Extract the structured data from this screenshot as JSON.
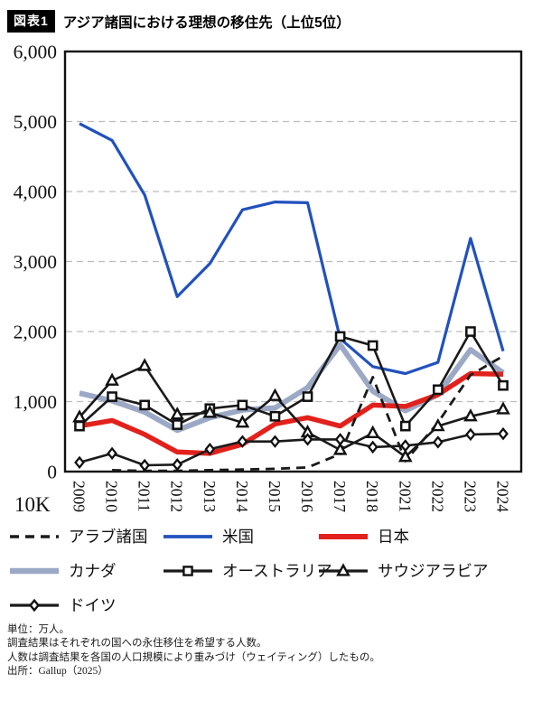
{
  "title": {
    "badge": "図表1",
    "text": "アジア諸国における理想の移住先（上位5位）"
  },
  "chart_data": {
    "type": "line",
    "x": [
      "2009",
      "2010",
      "2011",
      "2012",
      "2013",
      "2014",
      "2015",
      "2016",
      "2017",
      "2018",
      "2021",
      "2022",
      "2023",
      "2024"
    ],
    "ylim": [
      0,
      6000
    ],
    "yticks": [
      0,
      1000,
      2000,
      3000,
      4000,
      5000,
      6000
    ],
    "ytick_labels": [
      "0",
      "1,000",
      "2,000",
      "3,000",
      "4,000",
      "5,000",
      "6,000"
    ],
    "grid": "horizontal-dashed",
    "legend_position": "below",
    "axis_unit_label": "10K",
    "series": [
      {
        "key": "canada",
        "name": "カナダ",
        "color": "#9ca9c6",
        "style": "solid",
        "marker": "none",
        "width": 6,
        "values": [
          1120,
          1010,
          850,
          590,
          770,
          880,
          910,
          1200,
          1810,
          1150,
          870,
          1100,
          1740,
          1410
        ]
      },
      {
        "key": "japan",
        "name": "日本",
        "color": "#e2211c",
        "style": "solid",
        "marker": "none",
        "width": 5.5,
        "values": [
          650,
          730,
          530,
          280,
          260,
          390,
          680,
          770,
          650,
          950,
          930,
          1100,
          1400,
          1390
        ]
      },
      {
        "key": "us",
        "name": "米国",
        "color": "#2151bd",
        "style": "solid",
        "marker": "none",
        "width": 3.2,
        "values": [
          4970,
          4730,
          3950,
          2500,
          2970,
          3740,
          3850,
          3840,
          1900,
          1500,
          1400,
          1560,
          3330,
          1720
        ]
      },
      {
        "key": "arab",
        "name": "アラブ諸国",
        "color": "#1a1a1a",
        "style": "dashed",
        "marker": "none",
        "width": 2.8,
        "values": [
          null,
          20,
          10,
          10,
          20,
          30,
          40,
          60,
          250,
          1350,
          150,
          700,
          1380,
          1650
        ]
      },
      {
        "key": "australia",
        "name": "オーストラリア",
        "color": "#1a1a1a",
        "style": "solid",
        "marker": "square",
        "width": 2.6,
        "values": [
          650,
          1070,
          950,
          670,
          900,
          950,
          790,
          1070,
          1930,
          1800,
          650,
          1170,
          2000,
          1230
        ]
      },
      {
        "key": "saudi",
        "name": "サウジアラビア",
        "color": "#1a1a1a",
        "style": "solid",
        "marker": "triangle",
        "width": 2.6,
        "values": [
          775,
          1300,
          1510,
          815,
          840,
          700,
          1080,
          560,
          310,
          550,
          210,
          650,
          790,
          890
        ]
      },
      {
        "key": "germany",
        "name": "ドイツ",
        "color": "#1a1a1a",
        "style": "solid",
        "marker": "diamond",
        "width": 2.6,
        "values": [
          130,
          260,
          90,
          100,
          320,
          430,
          430,
          460,
          460,
          350,
          370,
          420,
          530,
          540
        ]
      }
    ],
    "legend_order": [
      "arab",
      "us",
      "japan",
      "canada",
      "australia",
      "saudi",
      "germany"
    ]
  },
  "footnotes": [
    "単位：万人。",
    "調査結果はそれぞれの国への永住移住を希望する人数。",
    "人数は調査結果を各国の人口規模により重みづけ（ウェイティング）したもの。",
    "出所：Gallup（2025）"
  ]
}
